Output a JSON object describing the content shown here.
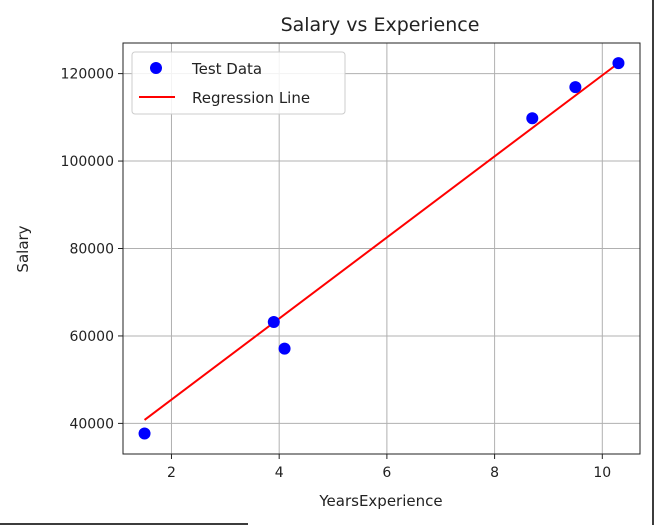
{
  "chart_data": {
    "type": "scatter",
    "title": "Salary vs Experience",
    "xlabel": "YearsExperience",
    "ylabel": "Salary",
    "xlim": [
      1.1,
      10.7
    ],
    "ylim": [
      33000,
      127000
    ],
    "xticks": [
      2,
      4,
      6,
      8,
      10
    ],
    "xtick_labels": [
      "2",
      "4",
      "6",
      "8",
      "10"
    ],
    "yticks": [
      40000,
      60000,
      80000,
      100000,
      120000
    ],
    "ytick_labels": [
      "40000",
      "60000",
      "80000",
      "100000",
      "120000"
    ],
    "grid": true,
    "legend_position": "top-left",
    "series": [
      {
        "name": "Test Data",
        "kind": "scatter",
        "color": "#0000ff",
        "points": [
          {
            "x": 1.5,
            "y": 37700
          },
          {
            "x": 3.9,
            "y": 63200
          },
          {
            "x": 4.1,
            "y": 57100
          },
          {
            "x": 8.7,
            "y": 109800
          },
          {
            "x": 9.5,
            "y": 116900
          },
          {
            "x": 10.3,
            "y": 122400
          }
        ]
      },
      {
        "name": "Regression Line",
        "kind": "line",
        "color": "#ff0000",
        "points": [
          {
            "x": 1.5,
            "y": 40800
          },
          {
            "x": 10.3,
            "y": 122400
          }
        ]
      }
    ]
  }
}
